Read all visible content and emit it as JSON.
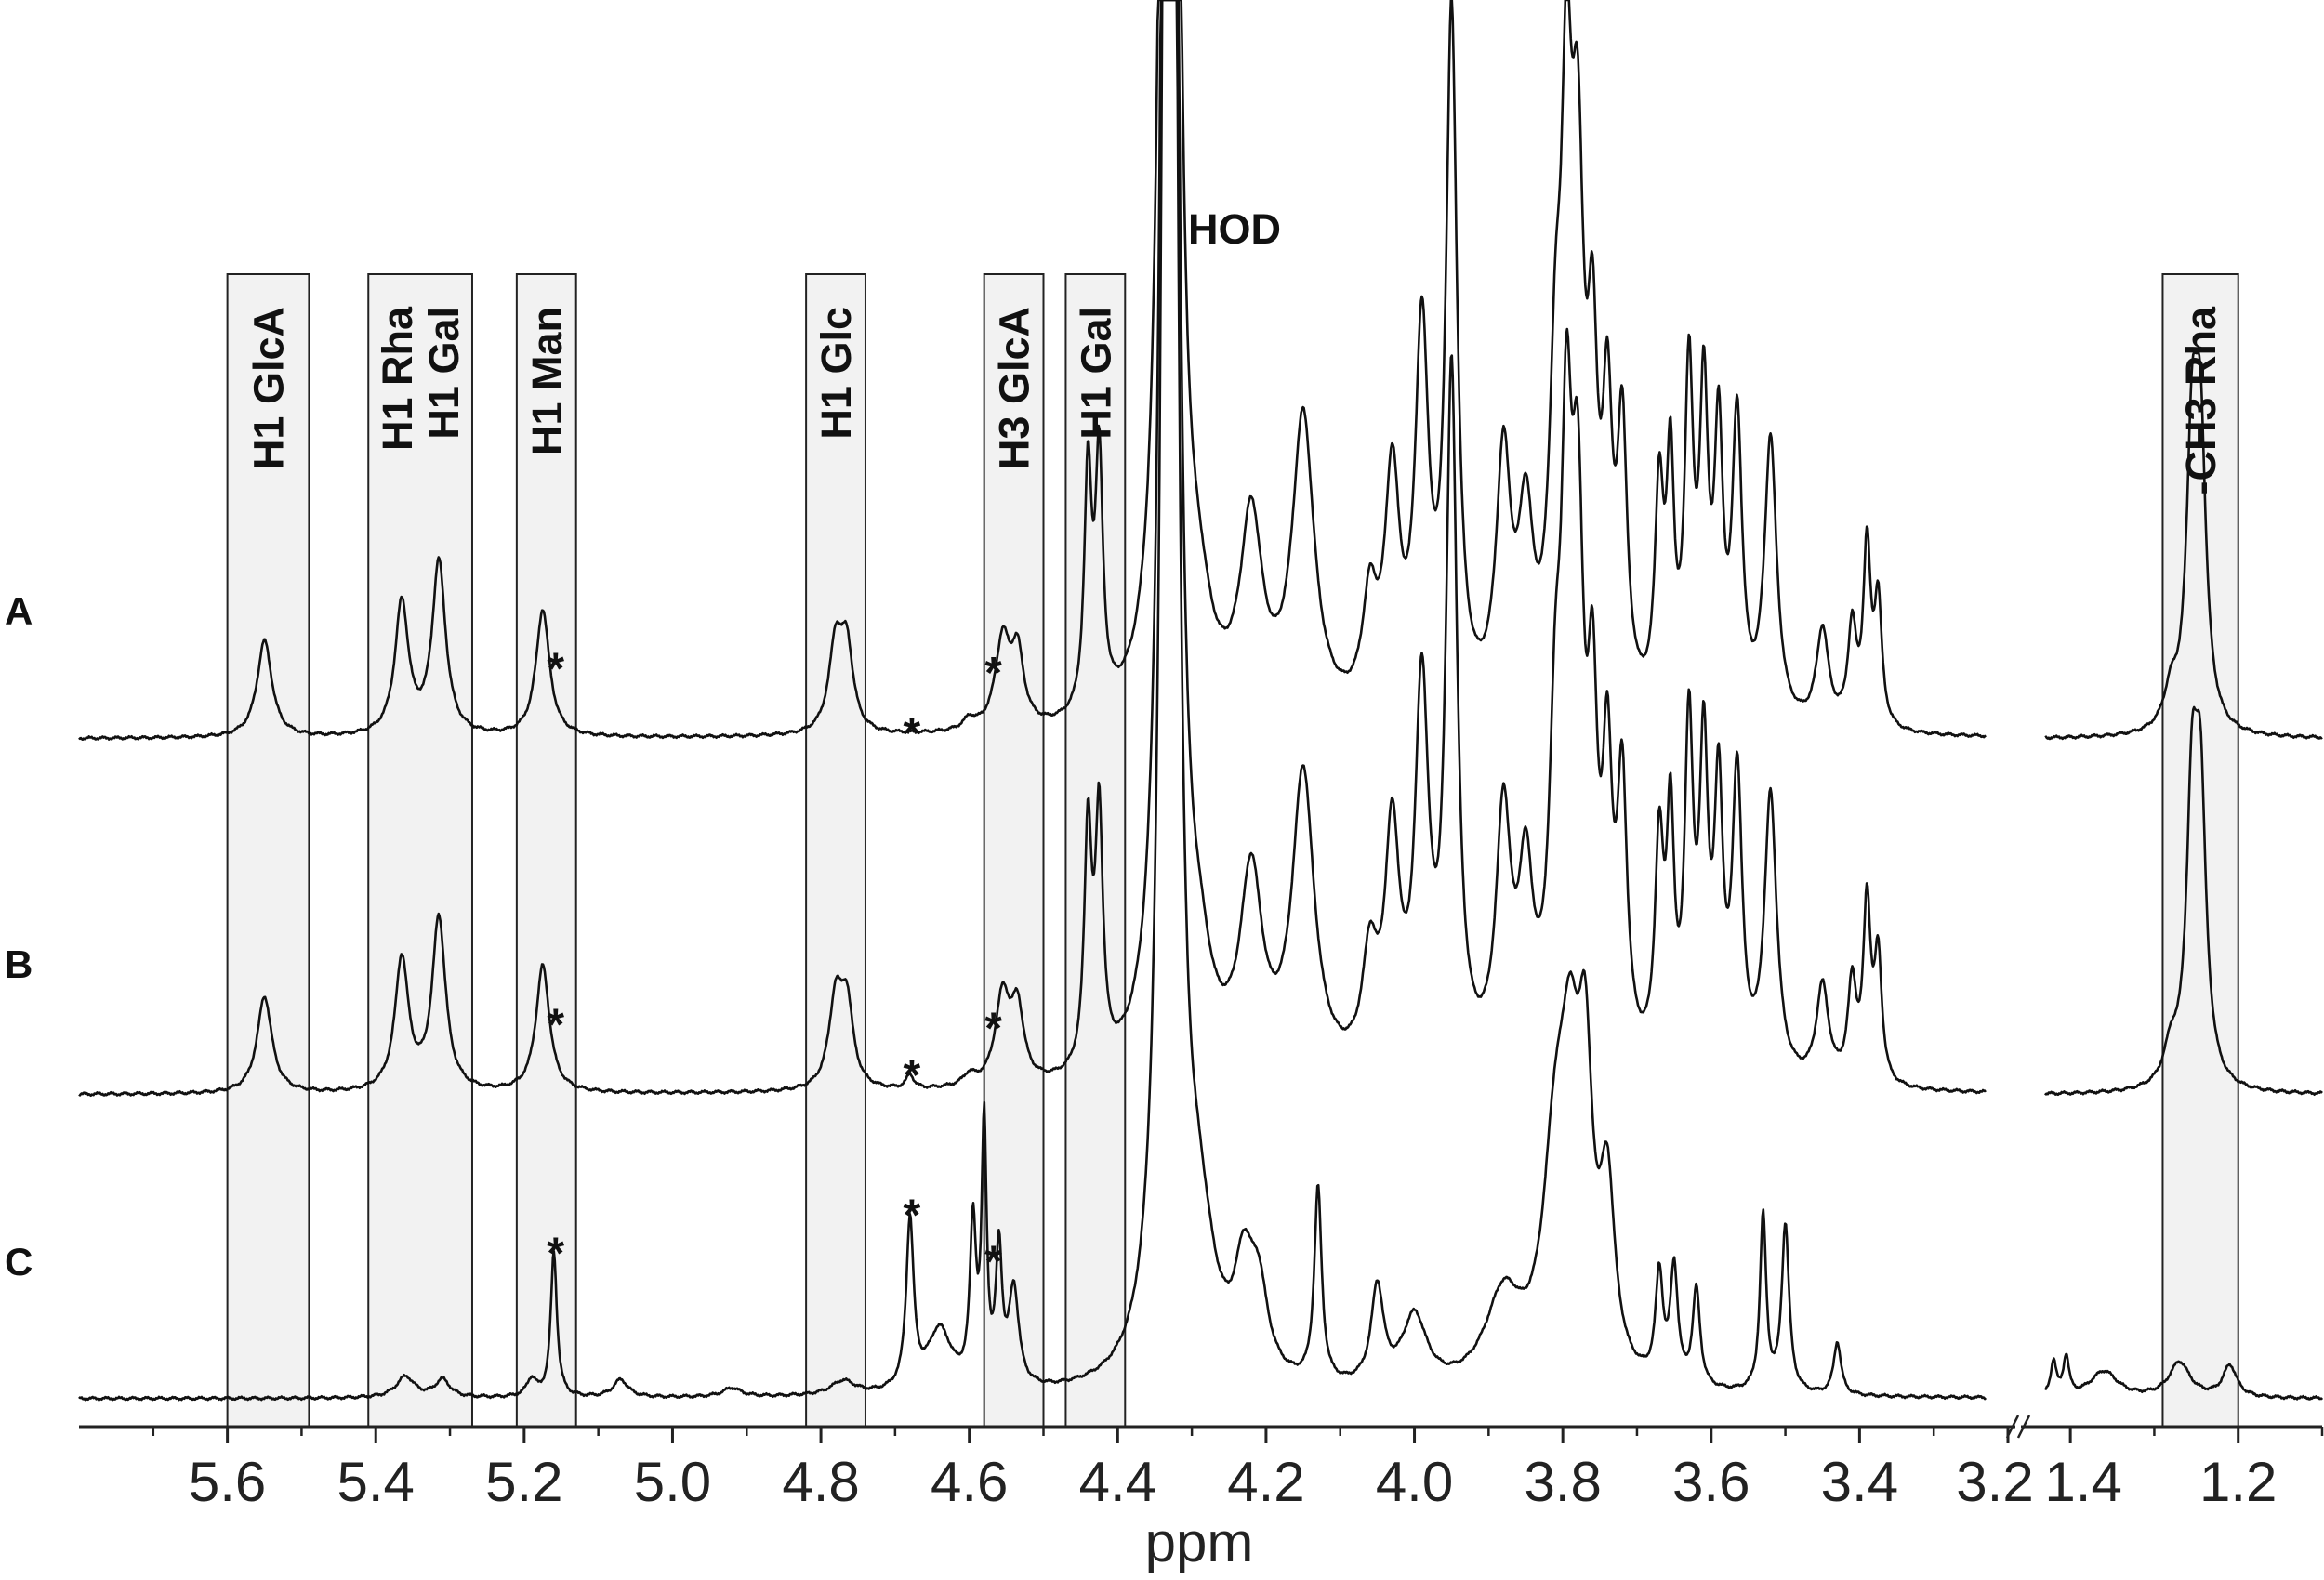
{
  "chart_data": {
    "type": "line",
    "xlabel": "ppm",
    "axis_breaks": [
      {
        "from": 3.2,
        "to": 1.45
      }
    ],
    "x_segments": [
      [
        5.8,
        3.2
      ],
      [
        1.45,
        1.1
      ]
    ],
    "x_ticks": [
      "5.6",
      "5.4",
      "5.2",
      "5.0",
      "4.8",
      "4.6",
      "4.4",
      "4.2",
      "4.0",
      "3.8",
      "3.6",
      "3.4",
      "3.2",
      "1.4",
      "1.2"
    ],
    "x_tick_values": [
      5.6,
      5.4,
      5.2,
      5.0,
      4.8,
      4.6,
      4.4,
      4.2,
      4.0,
      3.8,
      3.6,
      3.4,
      3.2,
      1.4,
      1.2
    ],
    "grid": false,
    "annotations": {
      "hod": {
        "label": "HOD",
        "ppm": 4.33
      },
      "regions": [
        {
          "label": "H1 GlcA",
          "lines": [
            "H1 GlcA"
          ],
          "from": 5.6,
          "to": 5.49
        },
        {
          "label": "H1 Rha H1 Gal",
          "lines": [
            "H1 Rha",
            "H1 Gal"
          ],
          "from": 5.41,
          "to": 5.27
        },
        {
          "label": "H1 Man",
          "lines": [
            "H1 Man"
          ],
          "from": 5.21,
          "to": 5.13
        },
        {
          "label": "H1 Glc",
          "lines": [
            "H1 Glc"
          ],
          "from": 4.82,
          "to": 4.74
        },
        {
          "label": "H3 GlcA",
          "lines": [
            "H3 GlcA"
          ],
          "from": 4.58,
          "to": 4.5
        },
        {
          "label": "H1 Gal",
          "lines": [
            "H1 Gal"
          ],
          "from": 4.47,
          "to": 4.39
        },
        {
          "label": "-CH3 Rha",
          "lines": [
            "-CH3 Rha"
          ],
          "from": 1.29,
          "to": 1.2
        }
      ],
      "star_symbol": "*"
    },
    "series": [
      {
        "name": "A",
        "stars": [
          5.16,
          4.68,
          4.57
        ],
        "peaks": [
          [
            5.55,
            55,
            0.012
          ],
          [
            5.365,
            75,
            0.011
          ],
          [
            5.315,
            98,
            0.011
          ],
          [
            5.175,
            72,
            0.011
          ],
          [
            4.78,
            50,
            0.011
          ],
          [
            4.765,
            45,
            0.01
          ],
          [
            4.6,
            6,
            0.01
          ],
          [
            4.555,
            50,
            0.012
          ],
          [
            4.535,
            40,
            0.01
          ],
          [
            4.44,
            135,
            0.006
          ],
          [
            4.425,
            140,
            0.006
          ],
          [
            4.33,
            2000,
            0.008
          ],
          [
            4.29,
            40,
            0.02
          ],
          [
            4.22,
            110,
            0.018
          ],
          [
            4.15,
            170,
            0.018
          ],
          [
            4.06,
            60,
            0.012
          ],
          [
            4.03,
            130,
            0.012
          ],
          [
            3.99,
            210,
            0.011
          ],
          [
            3.95,
            390,
            0.009
          ],
          [
            3.88,
            140,
            0.012
          ],
          [
            3.85,
            100,
            0.012
          ],
          [
            3.81,
            150,
            0.01
          ],
          [
            3.795,
            280,
            0.009
          ],
          [
            3.78,
            260,
            0.01
          ],
          [
            3.76,
            165,
            0.008
          ],
          [
            3.74,
            150,
            0.008
          ],
          [
            3.72,
            150,
            0.008
          ],
          [
            3.67,
            120,
            0.007
          ],
          [
            3.655,
            130,
            0.006
          ],
          [
            3.63,
            185,
            0.007
          ],
          [
            3.61,
            170,
            0.007
          ],
          [
            3.59,
            150,
            0.007
          ],
          [
            3.565,
            165,
            0.008
          ],
          [
            3.52,
            160,
            0.01
          ],
          [
            3.45,
            55,
            0.01
          ],
          [
            3.41,
            55,
            0.007
          ],
          [
            3.39,
            100,
            0.006
          ],
          [
            3.375,
            70,
            0.006
          ],
          [
            1.255,
            150,
            0.008
          ],
          [
            1.245,
            150,
            0.008
          ],
          [
            1.28,
            20,
            0.01
          ]
        ]
      },
      {
        "name": "B",
        "stars": [
          5.16,
          4.68,
          4.57
        ],
        "peaks": [
          [
            5.55,
            55,
            0.012
          ],
          [
            5.365,
            75,
            0.011
          ],
          [
            5.315,
            98,
            0.011
          ],
          [
            5.175,
            72,
            0.011
          ],
          [
            4.78,
            50,
            0.011
          ],
          [
            4.765,
            45,
            0.01
          ],
          [
            4.68,
            8,
            0.006
          ],
          [
            4.6,
            6,
            0.01
          ],
          [
            4.555,
            50,
            0.012
          ],
          [
            4.535,
            40,
            0.01
          ],
          [
            4.44,
            135,
            0.006
          ],
          [
            4.425,
            140,
            0.006
          ],
          [
            4.33,
            2000,
            0.008
          ],
          [
            4.29,
            40,
            0.02
          ],
          [
            4.22,
            110,
            0.018
          ],
          [
            4.15,
            170,
            0.018
          ],
          [
            4.06,
            60,
            0.012
          ],
          [
            4.03,
            130,
            0.012
          ],
          [
            3.99,
            210,
            0.011
          ],
          [
            3.95,
            390,
            0.009
          ],
          [
            3.88,
            140,
            0.012
          ],
          [
            3.85,
            100,
            0.012
          ],
          [
            3.81,
            150,
            0.01
          ],
          [
            3.795,
            280,
            0.009
          ],
          [
            3.78,
            260,
            0.01
          ],
          [
            3.76,
            165,
            0.008
          ],
          [
            3.74,
            150,
            0.008
          ],
          [
            3.72,
            150,
            0.008
          ],
          [
            3.67,
            120,
            0.007
          ],
          [
            3.655,
            130,
            0.006
          ],
          [
            3.63,
            185,
            0.007
          ],
          [
            3.61,
            170,
            0.007
          ],
          [
            3.59,
            150,
            0.007
          ],
          [
            3.565,
            165,
            0.008
          ],
          [
            3.52,
            160,
            0.01
          ],
          [
            3.45,
            55,
            0.01
          ],
          [
            3.41,
            55,
            0.007
          ],
          [
            3.39,
            100,
            0.006
          ],
          [
            3.375,
            70,
            0.006
          ],
          [
            1.255,
            150,
            0.008
          ],
          [
            1.245,
            150,
            0.008
          ],
          [
            1.28,
            20,
            0.01
          ]
        ]
      },
      {
        "name": "C",
        "stars": [
          5.16,
          4.68,
          4.57
        ],
        "peaks": [
          [
            5.36,
            12,
            0.015
          ],
          [
            5.31,
            10,
            0.012
          ],
          [
            5.16,
            82,
            0.005
          ],
          [
            5.19,
            10,
            0.008
          ],
          [
            5.07,
            10,
            0.012
          ],
          [
            4.92,
            5,
            0.015
          ],
          [
            4.77,
            8,
            0.02
          ],
          [
            4.68,
            95,
            0.006
          ],
          [
            4.64,
            35,
            0.02
          ],
          [
            4.595,
            90,
            0.005
          ],
          [
            4.58,
            145,
            0.004
          ],
          [
            4.56,
            75,
            0.005
          ],
          [
            4.54,
            55,
            0.008
          ],
          [
            4.33,
            2000,
            0.008
          ],
          [
            4.29,
            70,
            0.025
          ],
          [
            4.23,
            55,
            0.015
          ],
          [
            4.21,
            45,
            0.015
          ],
          [
            4.13,
            110,
            0.006
          ],
          [
            4.05,
            55,
            0.01
          ],
          [
            4.0,
            40,
            0.02
          ],
          [
            3.88,
            50,
            0.03
          ],
          [
            3.81,
            120,
            0.02
          ],
          [
            3.79,
            130,
            0.015
          ],
          [
            3.77,
            150,
            0.012
          ],
          [
            3.74,
            100,
            0.012
          ],
          [
            3.67,
            60,
            0.006
          ],
          [
            3.65,
            65,
            0.006
          ],
          [
            3.62,
            55,
            0.006
          ],
          [
            3.53,
            100,
            0.005
          ],
          [
            3.5,
            95,
            0.006
          ],
          [
            3.43,
            30,
            0.006
          ],
          [
            1.42,
            20,
            0.004
          ],
          [
            1.405,
            22,
            0.004
          ],
          [
            1.36,
            15,
            0.02
          ],
          [
            1.27,
            20,
            0.015
          ],
          [
            1.21,
            18,
            0.01
          ]
        ]
      }
    ]
  }
}
